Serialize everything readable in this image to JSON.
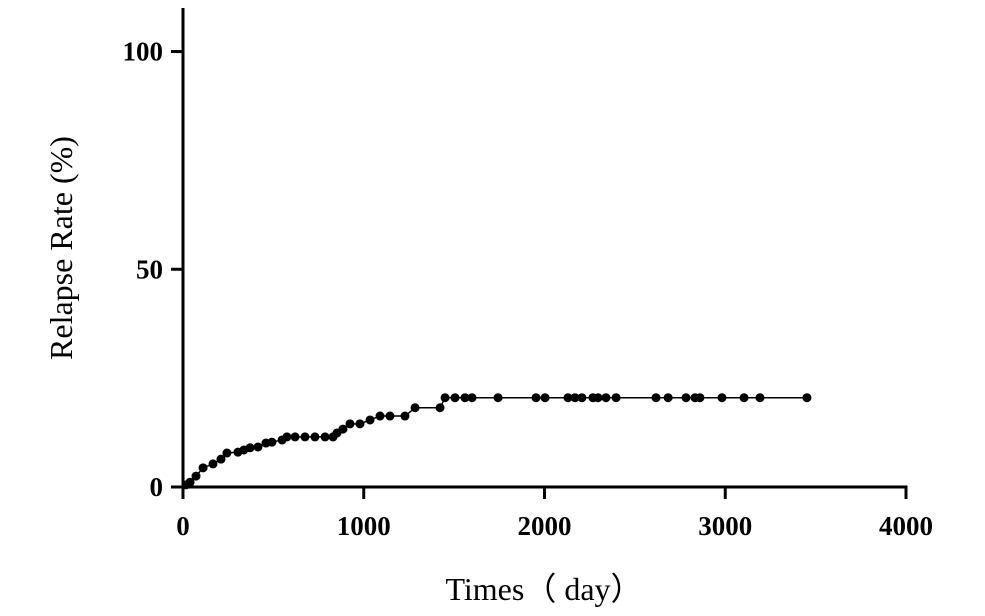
{
  "chart_data": {
    "type": "line",
    "x_label": "Times（ day）",
    "y_label": "Relapse Rate (%)",
    "xlim": [
      0,
      4000
    ],
    "ylim": [
      0,
      110
    ],
    "xticks": [
      0,
      1000,
      2000,
      3000,
      4000
    ],
    "yticks": [
      0,
      50,
      100
    ],
    "grid": false,
    "series": [
      {
        "color": "#000000",
        "x": [
          17,
          39,
          72,
          111,
          166,
          210,
          243,
          304,
          337,
          371,
          415,
          459,
          492,
          548,
          575,
          620,
          675,
          730,
          786,
          830,
          852,
          885,
          924,
          979,
          1035,
          1090,
          1145,
          1228,
          1284,
          1422,
          1450,
          1505,
          1560,
          1599,
          1743,
          1953,
          2003,
          2130,
          2169,
          2207,
          2268,
          2296,
          2340,
          2396,
          2617,
          2684,
          2783,
          2833,
          2860,
          2982,
          3104,
          3192,
          3452
        ],
        "values": [
          0.5,
          1.1,
          2.5,
          4.4,
          5.3,
          6.4,
          7.8,
          8.0,
          8.5,
          9.0,
          9.2,
          10.1,
          10.3,
          10.8,
          11.5,
          11.5,
          11.5,
          11.5,
          11.5,
          11.5,
          12.4,
          13.3,
          14.5,
          14.5,
          15.4,
          16.3,
          16.3,
          16.3,
          18.2,
          18.2,
          20.5,
          20.5,
          20.5,
          20.5,
          20.5,
          20.5,
          20.5,
          20.5,
          20.5,
          20.5,
          20.5,
          20.5,
          20.5,
          20.5,
          20.5,
          20.5,
          20.5,
          20.5,
          20.5,
          20.5,
          20.5,
          20.5,
          20.5
        ]
      }
    ]
  }
}
